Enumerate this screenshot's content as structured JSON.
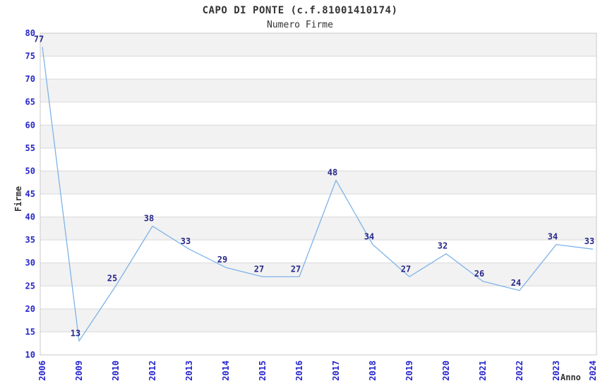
{
  "chart_data": {
    "type": "line",
    "title": "CAPO DI PONTE (c.f.81001410174)",
    "subtitle": "Numero Firme",
    "xlabel": "Anno",
    "ylabel": "Firme",
    "categories": [
      "2006",
      "2009",
      "2010",
      "2012",
      "2013",
      "2014",
      "2015",
      "2016",
      "2017",
      "2018",
      "2019",
      "2020",
      "2021",
      "2022",
      "2023",
      "2024"
    ],
    "values": [
      77,
      13,
      25,
      38,
      33,
      29,
      27,
      27,
      48,
      34,
      27,
      32,
      26,
      24,
      34,
      33
    ],
    "ylim": [
      10,
      80
    ],
    "ytick_step": 5,
    "grid": true,
    "legend": "none",
    "bands_alternating": true,
    "colors": {
      "line": "#7fb3e8",
      "tick_label": "#2525cc",
      "data_label": "#28288c",
      "title_text": "#333333",
      "band_fill": "#f2f2f2",
      "gridline": "#d9d9d9",
      "plot_border": "#c9c9c9",
      "background": "#ffffff"
    }
  }
}
